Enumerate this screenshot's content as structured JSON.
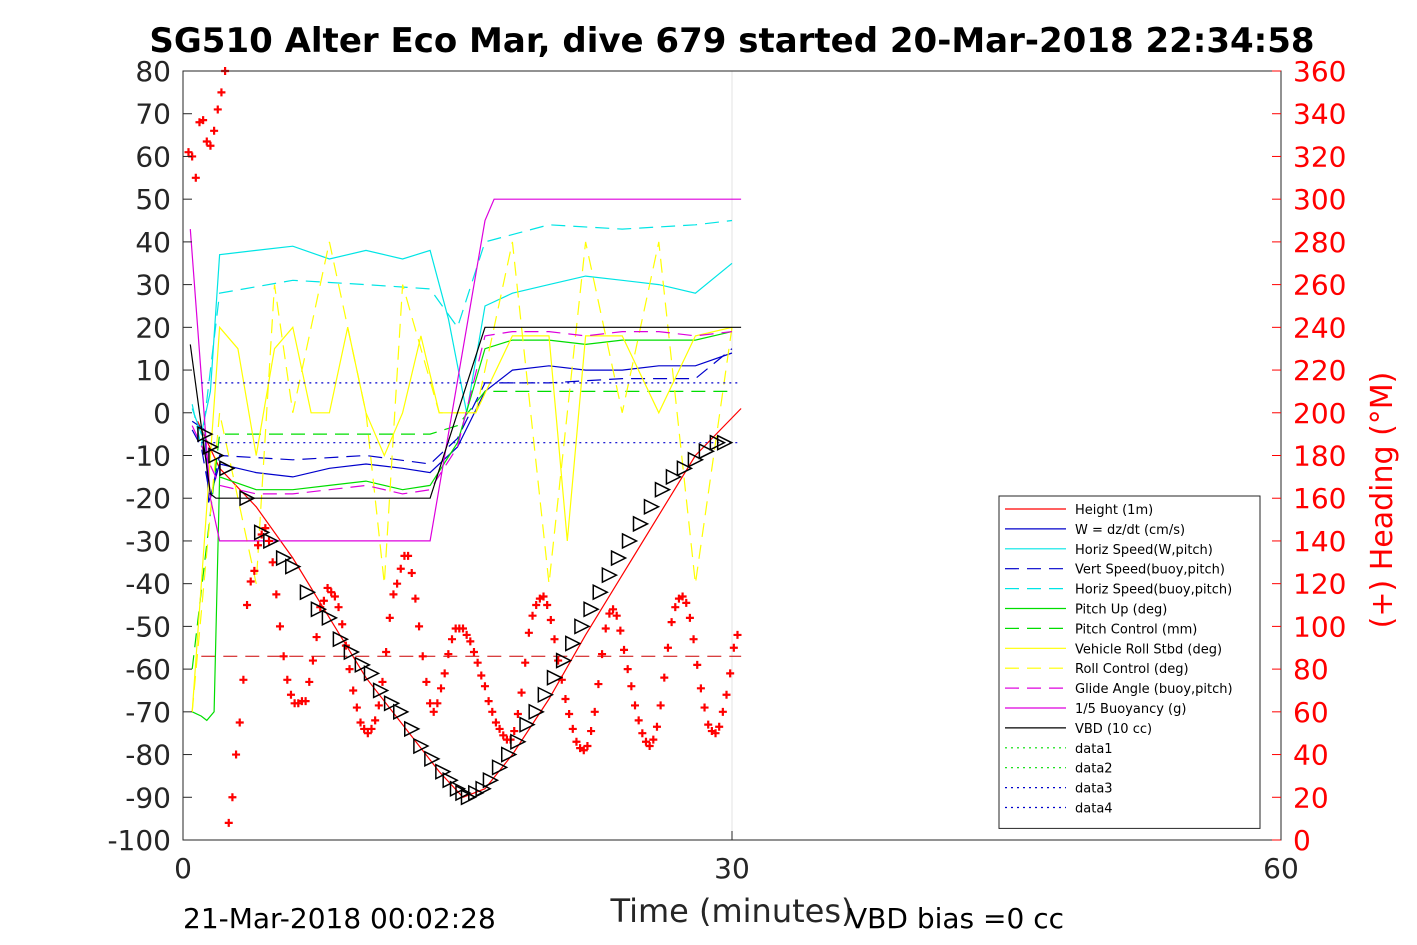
{
  "chart_data": {
    "type": "line",
    "title": "SG510 Alter Eco Mar, dive 679 started 20-Mar-2018 22:34:58",
    "xlabel": "Time (minutes)",
    "ylabel_right": "(+) Heading (°M)",
    "footer_left": "21-Mar-2018 00:02:28",
    "footer_right": "VBD bias =0 cc",
    "xlim": [
      0,
      60
    ],
    "ylim_left": [
      -100,
      80
    ],
    "ylim_right": [
      0,
      360
    ],
    "x_ticks": [
      0,
      30,
      60
    ],
    "y_ticks_left": [
      80,
      70,
      60,
      50,
      40,
      30,
      20,
      10,
      0,
      -10,
      -20,
      -30,
      -40,
      -50,
      -60,
      -70,
      -80,
      -90,
      -100
    ],
    "y_ticks_right": [
      360,
      340,
      320,
      300,
      280,
      260,
      240,
      220,
      200,
      180,
      160,
      140,
      120,
      100,
      80,
      60,
      40,
      20,
      0
    ],
    "grid": "x-major",
    "legend_location": "bottom-right",
    "series": [
      {
        "name": "Height (1m)",
        "color": "#ff0000",
        "style": "solid",
        "x": [
          0.8,
          2,
          4,
          6,
          8,
          10,
          12,
          14,
          15.3,
          16.5,
          18,
          20,
          22,
          24,
          26,
          28,
          30.5
        ],
        "y": [
          -2,
          -13,
          -22,
          -34,
          -48,
          -62,
          -73,
          -84,
          -90,
          -88,
          -80,
          -67,
          -52,
          -38,
          -24,
          -10,
          1
        ]
      },
      {
        "name": "W = dz/dt (cm/s)",
        "color": "#0000cc",
        "style": "solid",
        "x": [
          0.5,
          1.2,
          1.4,
          2,
          4,
          6,
          8,
          10,
          12,
          13.5,
          15,
          16.5,
          18,
          20,
          22,
          24,
          26,
          28,
          30
        ],
        "y": [
          -2,
          -4,
          -21,
          -12,
          -14,
          -15,
          -13,
          -12,
          -13,
          -14,
          -8,
          5,
          10,
          11,
          10,
          10,
          11,
          11,
          14
        ]
      },
      {
        "name": "Horiz Speed(W,pitch)",
        "color": "#00e5e5",
        "style": "solid",
        "x": [
          0.5,
          1,
          1.5,
          2,
          4,
          6,
          8,
          10,
          12,
          13.5,
          14.5,
          15.5,
          16.5,
          18,
          20,
          22,
          24,
          26,
          28,
          30
        ],
        "y": [
          1,
          -5,
          5,
          37,
          38,
          39,
          36,
          38,
          36,
          38,
          22,
          0,
          25,
          28,
          30,
          32,
          31,
          30,
          28,
          35
        ]
      },
      {
        "name": "Vert Speed(buoy,pitch)",
        "color": "#0000cc",
        "style": "dashed",
        "x": [
          0.5,
          1,
          1.5,
          2,
          6,
          10,
          13.5,
          15,
          16.5,
          20,
          24,
          28,
          30
        ],
        "y": [
          -4,
          -8,
          -20,
          -10,
          -11,
          -10,
          -12,
          -6,
          7,
          7,
          8,
          8,
          15
        ]
      },
      {
        "name": "Horiz Speed(buoy,pitch)",
        "color": "#00e5e5",
        "style": "dashed",
        "x": [
          0.5,
          1,
          1.5,
          2,
          6,
          10,
          13.5,
          15,
          16.5,
          20,
          24,
          28,
          30
        ],
        "y": [
          2,
          -8,
          10,
          28,
          31,
          30,
          29,
          20,
          40,
          44,
          43,
          44,
          45
        ]
      },
      {
        "name": "Pitch Up (deg)",
        "color": "#00dd00",
        "style": "solid",
        "x": [
          0.5,
          1,
          1.3,
          1.7,
          2,
          4,
          6,
          8,
          10,
          12,
          13.5,
          15,
          16.5,
          18,
          20,
          22,
          24,
          26,
          28,
          30
        ],
        "y": [
          -70,
          -71,
          -72,
          -70,
          -15,
          -18,
          -18,
          -17,
          -16,
          -18,
          -17,
          -7,
          15,
          17,
          17,
          16,
          17,
          17,
          17,
          19
        ]
      },
      {
        "name": "Pitch Control (mm)",
        "color": "#00dd00",
        "style": "dashed",
        "x": [
          0.5,
          2,
          6,
          10,
          13.5,
          15,
          16.5,
          20,
          24,
          28,
          30
        ],
        "y": [
          -60,
          -5,
          -5,
          -5,
          -5,
          -3,
          5,
          5,
          5,
          5,
          5
        ]
      },
      {
        "name": "Vehicle Roll Stbd (deg)",
        "color": "#ffff00",
        "style": "solid",
        "x": [
          0.5,
          2,
          3,
          4,
          5,
          6,
          7,
          8,
          9,
          10,
          11,
          12,
          13,
          14,
          16,
          18,
          20,
          21,
          22,
          24,
          26,
          28,
          30
        ],
        "y": [
          -70,
          20,
          15,
          -10,
          15,
          20,
          0,
          0,
          20,
          0,
          -10,
          0,
          18,
          0,
          0,
          18,
          18,
          -30,
          18,
          18,
          0,
          18,
          20
        ]
      },
      {
        "name": "Roll Control (deg)",
        "color": "#ffff00",
        "style": "dashed",
        "x": [
          0.5,
          2,
          4,
          5,
          6,
          8,
          10,
          11,
          12,
          14,
          16,
          18,
          20,
          22,
          24,
          26,
          28,
          30
        ],
        "y": [
          -70,
          0,
          -40,
          30,
          0,
          40,
          0,
          -40,
          30,
          0,
          0,
          40,
          -40,
          40,
          0,
          40,
          -40,
          20
        ]
      },
      {
        "name": "Glide Angle (buoy,pitch)",
        "color": "#dd00dd",
        "style": "dashed",
        "x": [
          0.5,
          2,
          4,
          6,
          8,
          10,
          12,
          13.5,
          15,
          16.5,
          18,
          20,
          22,
          24,
          26,
          28,
          30
        ],
        "y": [
          -3,
          -17,
          -19,
          -19,
          -18,
          -17,
          -19,
          -18,
          -8,
          18,
          19,
          19,
          18,
          19,
          19,
          18,
          19
        ]
      },
      {
        "name": "1/5 Buoyancy (g)",
        "color": "#dd00dd",
        "style": "solid",
        "x": [
          0.4,
          1.5,
          2,
          13.5,
          16.5,
          17,
          30.5
        ],
        "y": [
          43,
          -20,
          -30,
          -30,
          45,
          50,
          50
        ]
      },
      {
        "name": "VBD (10 cc)",
        "color": "#000000",
        "style": "solid",
        "x": [
          0.4,
          1.5,
          1.8,
          13.5,
          16.5,
          30.5
        ],
        "y": [
          16,
          -19,
          -20,
          -20,
          20,
          20
        ]
      },
      {
        "name": "data1",
        "color": "#00dd00",
        "style": "dotted",
        "x": [],
        "y": []
      },
      {
        "name": "data2",
        "color": "#00dd00",
        "style": "dotted",
        "x": [],
        "y": []
      },
      {
        "name": "data3",
        "color": "#0000cc",
        "style": "dotted",
        "x": [
          1,
          30.5
        ],
        "y": [
          7,
          7
        ]
      },
      {
        "name": "data4",
        "color": "#0000cc",
        "style": "dotted",
        "x": [
          1,
          30.5
        ],
        "y": [
          -7,
          -7
        ]
      }
    ],
    "reference_lines": [
      {
        "axis": "right",
        "value": 86,
        "color": "#cc0000",
        "style": "dashed",
        "x": [
          1,
          30.5
        ]
      }
    ],
    "heading_points": {
      "axis": "right",
      "color": "#ff0000",
      "marker": "+",
      "x": [
        0.3,
        0.5,
        0.7,
        0.9,
        1.1,
        1.3,
        1.5,
        1.7,
        1.9,
        2.1,
        2.3,
        2.5,
        2.7,
        2.9,
        3.1,
        3.3,
        3.5,
        3.7,
        3.9,
        4.1,
        4.3,
        4.5,
        4.7,
        4.9,
        5.1,
        5.3,
        5.5,
        5.7,
        5.9,
        6.1,
        6.3,
        6.5,
        6.7,
        6.9,
        7.1,
        7.3,
        7.5,
        7.7,
        7.9,
        8.1,
        8.3,
        8.5,
        8.7,
        8.9,
        9.1,
        9.3,
        9.5,
        9.7,
        9.9,
        10.1,
        10.3,
        10.5,
        10.7,
        10.9,
        11.1,
        11.3,
        11.5,
        11.7,
        11.9,
        12.1,
        12.3,
        12.5,
        12.7,
        12.9,
        13.1,
        13.3,
        13.5,
        13.7,
        13.9,
        14.1,
        14.3,
        14.5,
        14.7,
        14.9,
        15.1,
        15.3,
        15.5,
        15.7,
        15.9,
        16.1,
        16.3,
        16.5,
        16.7,
        16.9,
        17.1,
        17.3,
        17.5,
        17.7,
        17.9,
        18.1,
        18.3,
        18.5,
        18.7,
        18.9,
        19.1,
        19.3,
        19.5,
        19.7,
        19.9,
        20.1,
        20.3,
        20.5,
        20.7,
        20.9,
        21.1,
        21.3,
        21.5,
        21.7,
        21.9,
        22.1,
        22.3,
        22.5,
        22.7,
        22.9,
        23.1,
        23.3,
        23.5,
        23.7,
        23.9,
        24.1,
        24.3,
        24.5,
        24.7,
        24.9,
        25.1,
        25.3,
        25.5,
        25.7,
        25.9,
        26.1,
        26.3,
        26.5,
        26.7,
        26.9,
        27.1,
        27.3,
        27.5,
        27.7,
        27.9,
        28.1,
        28.3,
        28.5,
        28.7,
        28.9,
        29.1,
        29.3,
        29.5,
        29.7,
        29.9,
        30.1,
        30.3
      ],
      "y": [
        322,
        320,
        310,
        336,
        337,
        327,
        325,
        332,
        342,
        350,
        360,
        8,
        20,
        40,
        55,
        75,
        110,
        121,
        126,
        138,
        143,
        146,
        140,
        130,
        115,
        100,
        86,
        75,
        68,
        64,
        64,
        65,
        65,
        74,
        84,
        95,
        109,
        112,
        118,
        116,
        114,
        109,
        101,
        91,
        80,
        70,
        62,
        55,
        52,
        50,
        52,
        56,
        63,
        74,
        88,
        104,
        115,
        120,
        127,
        133,
        133,
        125,
        113,
        100,
        86,
        74,
        64,
        60,
        64,
        71,
        78,
        87,
        94,
        99,
        99,
        99,
        96,
        93,
        88,
        83,
        77,
        72,
        65,
        60,
        55,
        52,
        49,
        47,
        47,
        51,
        59,
        69,
        83,
        97,
        105,
        110,
        113,
        114,
        110,
        103,
        94,
        84,
        75,
        66,
        59,
        52,
        46,
        43,
        42,
        44,
        51,
        60,
        73,
        87,
        99,
        106,
        108,
        105,
        98,
        89,
        80,
        72,
        63,
        56,
        50,
        46,
        44,
        47,
        53,
        63,
        76,
        90,
        102,
        109,
        113,
        114,
        111,
        104,
        94,
        82,
        71,
        62,
        54,
        51,
        50,
        53,
        60,
        68,
        78,
        90,
        96
      ]
    },
    "triangle_markers": {
      "axis": "left",
      "color": "#000000",
      "x": [
        1.2,
        1.5,
        1.8,
        2.4,
        3.5,
        4.3,
        4.8,
        5.5,
        6.0,
        6.8,
        7.4,
        8.0,
        8.6,
        9.2,
        9.8,
        10.3,
        10.8,
        11.4,
        11.9,
        12.5,
        13.0,
        13.6,
        14.2,
        14.6,
        15.0,
        15.3,
        15.6,
        16.0,
        16.4,
        16.8,
        17.3,
        17.8,
        18.3,
        18.8,
        19.3,
        19.8,
        20.3,
        20.8,
        21.3,
        21.8,
        22.3,
        22.8,
        23.3,
        23.8,
        24.4,
        25.0,
        25.6,
        26.2,
        26.8,
        27.4,
        28.0,
        28.6,
        29.2,
        29.6
      ],
      "y": [
        -5,
        -8,
        -10,
        -13,
        -20,
        -28,
        -30,
        -34,
        -36,
        -42,
        -46,
        -48,
        -53,
        -56,
        -59,
        -61,
        -65,
        -68,
        -70,
        -74,
        -78,
        -81,
        -84,
        -86,
        -88,
        -89,
        -90,
        -89,
        -88,
        -86,
        -83,
        -80,
        -77,
        -73,
        -70,
        -66,
        -62,
        -58,
        -54,
        -50,
        -46,
        -42,
        -38,
        -34,
        -30,
        -26,
        -22,
        -18,
        -15,
        -13,
        -11,
        -9,
        -7,
        -7
      ]
    }
  }
}
